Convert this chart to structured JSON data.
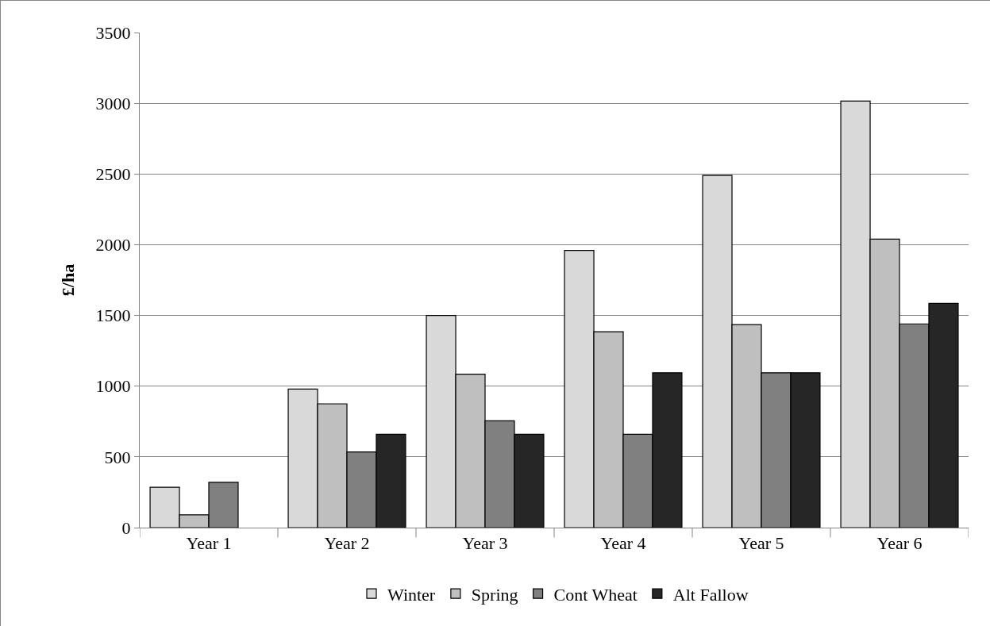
{
  "chart_data": {
    "type": "bar",
    "ylabel": "£/ha",
    "categories": [
      "Year 1",
      "Year 2",
      "Year 3",
      "Year 4",
      "Year 5",
      "Year 6"
    ],
    "series": [
      {
        "name": "Winter",
        "color": "#d9d9d9",
        "values": [
          285,
          980,
          1500,
          1960,
          2490,
          3015
        ]
      },
      {
        "name": "Spring",
        "color": "#bfbfbf",
        "values": [
          90,
          875,
          1085,
          1385,
          1435,
          2040
        ]
      },
      {
        "name": "Cont Wheat",
        "color": "#808080",
        "values": [
          320,
          535,
          755,
          660,
          1095,
          1440
        ]
      },
      {
        "name": "Alt Fallow",
        "color": "#262626",
        "values": [
          null,
          660,
          660,
          1095,
          1095,
          1585
        ]
      }
    ],
    "ylim": [
      0,
      3500
    ],
    "yticks": [
      0,
      500,
      1000,
      1500,
      2000,
      2500,
      3000,
      3500
    ],
    "grid": "y",
    "legend": "bottom"
  }
}
